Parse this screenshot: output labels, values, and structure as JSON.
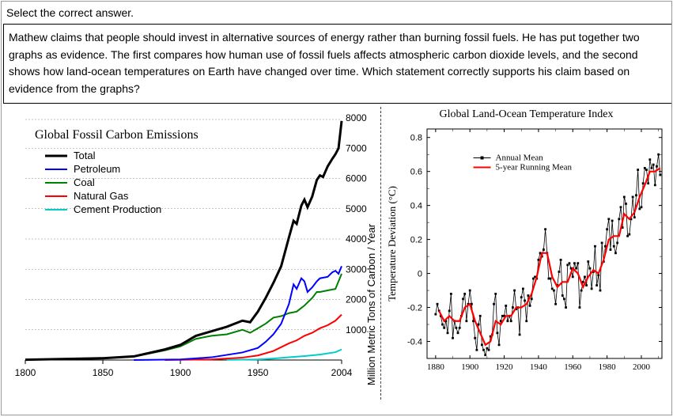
{
  "instruction": "Select the correct answer.",
  "question": "Mathew claims that people should invest in alternative sources of energy rather than burning fossil fuels. He has put together two graphs as evidence. The first compares how human use of fossil fuels affects atmospheric carbon dioxide levels, and the second shows how land-ocean temperatures on Earth have changed over time. Which statement correctly supports his claim based on evidence from the graphs?",
  "chart_left": {
    "type": "line",
    "title": "Global Fossil Carbon Emissions",
    "y_label": "Million Metric Tons of Carbon / Year",
    "x_ticks": [
      "1800",
      "1850",
      "1900",
      "1950",
      "2004"
    ],
    "y_ticks": [
      "1000",
      "2000",
      "3000",
      "4000",
      "5000",
      "6000",
      "7000",
      "8000"
    ],
    "xlim": [
      1800,
      2004
    ],
    "ylim": [
      0,
      8000
    ],
    "grid_color": "#888888",
    "background_color": "#ffffff",
    "title_fontsize": 16,
    "legend": [
      {
        "label": "Total",
        "color": "#000000",
        "width": 3
      },
      {
        "label": "Petroleum",
        "color": "#0000ff",
        "width": 2
      },
      {
        "label": "Coal",
        "color": "#008000",
        "width": 2
      },
      {
        "label": "Natural Gas",
        "color": "#ff0000",
        "width": 2
      },
      {
        "label": "Cement Production",
        "color": "#00cccc",
        "width": 2
      }
    ],
    "series": {
      "Total": [
        [
          1800,
          10
        ],
        [
          1850,
          60
        ],
        [
          1870,
          120
        ],
        [
          1890,
          350
        ],
        [
          1900,
          500
        ],
        [
          1910,
          800
        ],
        [
          1920,
          950
        ],
        [
          1930,
          1100
        ],
        [
          1940,
          1300
        ],
        [
          1945,
          1250
        ],
        [
          1950,
          1600
        ],
        [
          1955,
          2050
        ],
        [
          1960,
          2550
        ],
        [
          1965,
          3100
        ],
        [
          1970,
          4050
        ],
        [
          1973,
          4600
        ],
        [
          1975,
          4500
        ],
        [
          1978,
          5100
        ],
        [
          1980,
          5300
        ],
        [
          1982,
          5050
        ],
        [
          1985,
          5400
        ],
        [
          1988,
          5950
        ],
        [
          1990,
          6100
        ],
        [
          1992,
          6050
        ],
        [
          1995,
          6400
        ],
        [
          1998,
          6650
        ],
        [
          2000,
          6800
        ],
        [
          2002,
          7000
        ],
        [
          2004,
          7900
        ]
      ],
      "Coal": [
        [
          1800,
          10
        ],
        [
          1850,
          55
        ],
        [
          1870,
          110
        ],
        [
          1890,
          320
        ],
        [
          1900,
          450
        ],
        [
          1910,
          700
        ],
        [
          1920,
          800
        ],
        [
          1930,
          850
        ],
        [
          1940,
          1000
        ],
        [
          1945,
          900
        ],
        [
          1950,
          1050
        ],
        [
          1955,
          1200
        ],
        [
          1960,
          1400
        ],
        [
          1965,
          1450
        ],
        [
          1970,
          1550
        ],
        [
          1975,
          1600
        ],
        [
          1980,
          1800
        ],
        [
          1985,
          2050
        ],
        [
          1988,
          2250
        ],
        [
          1990,
          2250
        ],
        [
          1995,
          2300
        ],
        [
          2000,
          2350
        ],
        [
          2004,
          2850
        ]
      ],
      "Petroleum": [
        [
          1870,
          1
        ],
        [
          1900,
          20
        ],
        [
          1920,
          90
        ],
        [
          1940,
          250
        ],
        [
          1950,
          400
        ],
        [
          1955,
          600
        ],
        [
          1960,
          850
        ],
        [
          1965,
          1200
        ],
        [
          1970,
          1850
        ],
        [
          1973,
          2500
        ],
        [
          1975,
          2350
        ],
        [
          1978,
          2700
        ],
        [
          1980,
          2600
        ],
        [
          1982,
          2250
        ],
        [
          1985,
          2400
        ],
        [
          1988,
          2600
        ],
        [
          1990,
          2700
        ],
        [
          1995,
          2750
        ],
        [
          1998,
          2900
        ],
        [
          2000,
          2950
        ],
        [
          2002,
          2850
        ],
        [
          2004,
          3100
        ]
      ],
      "Natural Gas": [
        [
          1890,
          1
        ],
        [
          1920,
          20
        ],
        [
          1940,
          80
        ],
        [
          1950,
          150
        ],
        [
          1960,
          300
        ],
        [
          1970,
          550
        ],
        [
          1975,
          650
        ],
        [
          1980,
          800
        ],
        [
          1985,
          900
        ],
        [
          1990,
          1050
        ],
        [
          1995,
          1150
        ],
        [
          2000,
          1300
        ],
        [
          2004,
          1500
        ]
      ],
      "Cement Production": [
        [
          1930,
          5
        ],
        [
          1950,
          20
        ],
        [
          1960,
          50
        ],
        [
          1970,
          90
        ],
        [
          1980,
          130
        ],
        [
          1990,
          180
        ],
        [
          2000,
          260
        ],
        [
          2004,
          350
        ]
      ]
    }
  },
  "chart_right": {
    "type": "line_with_markers",
    "title": "Global Land-Ocean Temperature Index",
    "y_label": "Temperature Deviation (°C)",
    "x_ticks": [
      "1880",
      "1900",
      "1920",
      "1940",
      "1960",
      "1980",
      "2000"
    ],
    "y_ticks": [
      "-0.4",
      "-0.2",
      "0",
      "0.2",
      "0.4",
      "0.6",
      "0.8"
    ],
    "xlim": [
      1875,
      2012
    ],
    "ylim": [
      -0.5,
      0.85
    ],
    "background_color": "#ffffff",
    "border_color": "#000000",
    "legend": [
      {
        "label": "Annual Mean",
        "color": "#000000",
        "marker": "square"
      },
      {
        "label": "5-year Running Mean",
        "color": "#ff0000",
        "width": 2
      }
    ],
    "annual_mean": [
      [
        1880,
        -0.24
      ],
      [
        1881,
        -0.18
      ],
      [
        1882,
        -0.22
      ],
      [
        1883,
        -0.25
      ],
      [
        1884,
        -0.3
      ],
      [
        1885,
        -0.32
      ],
      [
        1886,
        -0.28
      ],
      [
        1887,
        -0.35
      ],
      [
        1888,
        -0.22
      ],
      [
        1889,
        -0.12
      ],
      [
        1890,
        -0.38
      ],
      [
        1891,
        -0.28
      ],
      [
        1892,
        -0.32
      ],
      [
        1893,
        -0.35
      ],
      [
        1894,
        -0.32
      ],
      [
        1895,
        -0.25
      ],
      [
        1896,
        -0.15
      ],
      [
        1897,
        -0.12
      ],
      [
        1898,
        -0.28
      ],
      [
        1899,
        -0.18
      ],
      [
        1900,
        -0.1
      ],
      [
        1901,
        -0.18
      ],
      [
        1902,
        -0.28
      ],
      [
        1903,
        -0.38
      ],
      [
        1904,
        -0.45
      ],
      [
        1905,
        -0.3
      ],
      [
        1906,
        -0.25
      ],
      [
        1907,
        -0.42
      ],
      [
        1908,
        -0.45
      ],
      [
        1909,
        -0.48
      ],
      [
        1910,
        -0.44
      ],
      [
        1911,
        -0.45
      ],
      [
        1912,
        -0.37
      ],
      [
        1913,
        -0.36
      ],
      [
        1914,
        -0.18
      ],
      [
        1915,
        -0.12
      ],
      [
        1916,
        -0.35
      ],
      [
        1917,
        -0.42
      ],
      [
        1918,
        -0.28
      ],
      [
        1919,
        -0.25
      ],
      [
        1920,
        -0.25
      ],
      [
        1921,
        -0.19
      ],
      [
        1922,
        -0.28
      ],
      [
        1923,
        -0.25
      ],
      [
        1924,
        -0.28
      ],
      [
        1925,
        -0.2
      ],
      [
        1926,
        -0.1
      ],
      [
        1927,
        -0.21
      ],
      [
        1928,
        -0.2
      ],
      [
        1929,
        -0.36
      ],
      [
        1930,
        -0.14
      ],
      [
        1931,
        -0.09
      ],
      [
        1932,
        -0.16
      ],
      [
        1933,
        -0.28
      ],
      [
        1934,
        -0.13
      ],
      [
        1935,
        -0.19
      ],
      [
        1936,
        -0.15
      ],
      [
        1937,
        -0.03
      ],
      [
        1938,
        -0.02
      ],
      [
        1939,
        -0.03
      ],
      [
        1940,
        0.08
      ],
      [
        1941,
        0.12
      ],
      [
        1942,
        0.1
      ],
      [
        1943,
        0.14
      ],
      [
        1944,
        0.26
      ],
      [
        1945,
        0.12
      ],
      [
        1946,
        -0.03
      ],
      [
        1947,
        -0.03
      ],
      [
        1948,
        -0.09
      ],
      [
        1949,
        -0.1
      ],
      [
        1950,
        -0.18
      ],
      [
        1951,
        -0.07
      ],
      [
        1952,
        0.01
      ],
      [
        1953,
        0.08
      ],
      [
        1954,
        -0.13
      ],
      [
        1955,
        -0.15
      ],
      [
        1956,
        -0.2
      ],
      [
        1957,
        0.05
      ],
      [
        1958,
        0.06
      ],
      [
        1959,
        0.03
      ],
      [
        1960,
        -0.02
      ],
      [
        1961,
        0.06
      ],
      [
        1962,
        0.03
      ],
      [
        1963,
        0.06
      ],
      [
        1964,
        -0.2
      ],
      [
        1965,
        -0.1
      ],
      [
        1966,
        -0.05
      ],
      [
        1967,
        -0.02
      ],
      [
        1968,
        -0.07
      ],
      [
        1969,
        0.07
      ],
      [
        1970,
        0.03
      ],
      [
        1971,
        -0.09
      ],
      [
        1972,
        0.01
      ],
      [
        1973,
        0.16
      ],
      [
        1974,
        -0.07
      ],
      [
        1975,
        -0.01
      ],
      [
        1976,
        -0.1
      ],
      [
        1977,
        0.18
      ],
      [
        1978,
        0.07
      ],
      [
        1979,
        0.16
      ],
      [
        1980,
        0.26
      ],
      [
        1981,
        0.32
      ],
      [
        1982,
        0.14
      ],
      [
        1983,
        0.31
      ],
      [
        1984,
        0.16
      ],
      [
        1985,
        0.12
      ],
      [
        1986,
        0.18
      ],
      [
        1987,
        0.32
      ],
      [
        1988,
        0.39
      ],
      [
        1989,
        0.27
      ],
      [
        1990,
        0.45
      ],
      [
        1991,
        0.41
      ],
      [
        1992,
        0.22
      ],
      [
        1993,
        0.23
      ],
      [
        1994,
        0.32
      ],
      [
        1995,
        0.45
      ],
      [
        1996,
        0.33
      ],
      [
        1997,
        0.46
      ],
      [
        1998,
        0.61
      ],
      [
        1999,
        0.38
      ],
      [
        2000,
        0.39
      ],
      [
        2001,
        0.53
      ],
      [
        2002,
        0.62
      ],
      [
        2003,
        0.61
      ],
      [
        2004,
        0.53
      ],
      [
        2005,
        0.67
      ],
      [
        2006,
        0.62
      ],
      [
        2007,
        0.64
      ],
      [
        2008,
        0.52
      ],
      [
        2009,
        0.63
      ],
      [
        2010,
        0.7
      ],
      [
        2011,
        0.58
      ]
    ],
    "running_mean": [
      [
        1882,
        -0.22
      ],
      [
        1885,
        -0.28
      ],
      [
        1888,
        -0.25
      ],
      [
        1891,
        -0.28
      ],
      [
        1894,
        -0.28
      ],
      [
        1897,
        -0.2
      ],
      [
        1900,
        -0.18
      ],
      [
        1903,
        -0.28
      ],
      [
        1906,
        -0.35
      ],
      [
        1909,
        -0.42
      ],
      [
        1912,
        -0.4
      ],
      [
        1915,
        -0.28
      ],
      [
        1918,
        -0.3
      ],
      [
        1921,
        -0.25
      ],
      [
        1924,
        -0.25
      ],
      [
        1927,
        -0.2
      ],
      [
        1930,
        -0.2
      ],
      [
        1933,
        -0.18
      ],
      [
        1936,
        -0.12
      ],
      [
        1939,
        -0.02
      ],
      [
        1942,
        0.12
      ],
      [
        1945,
        0.12
      ],
      [
        1948,
        -0.02
      ],
      [
        1951,
        -0.08
      ],
      [
        1954,
        -0.05
      ],
      [
        1957,
        -0.05
      ],
      [
        1960,
        0.03
      ],
      [
        1963,
        0.0
      ],
      [
        1966,
        -0.08
      ],
      [
        1969,
        -0.02
      ],
      [
        1972,
        0.02
      ],
      [
        1975,
        0.0
      ],
      [
        1978,
        0.08
      ],
      [
        1981,
        0.2
      ],
      [
        1984,
        0.22
      ],
      [
        1987,
        0.22
      ],
      [
        1990,
        0.35
      ],
      [
        1993,
        0.32
      ],
      [
        1996,
        0.36
      ],
      [
        1999,
        0.45
      ],
      [
        2002,
        0.52
      ],
      [
        2005,
        0.6
      ],
      [
        2008,
        0.6
      ],
      [
        2011,
        0.62
      ]
    ]
  }
}
